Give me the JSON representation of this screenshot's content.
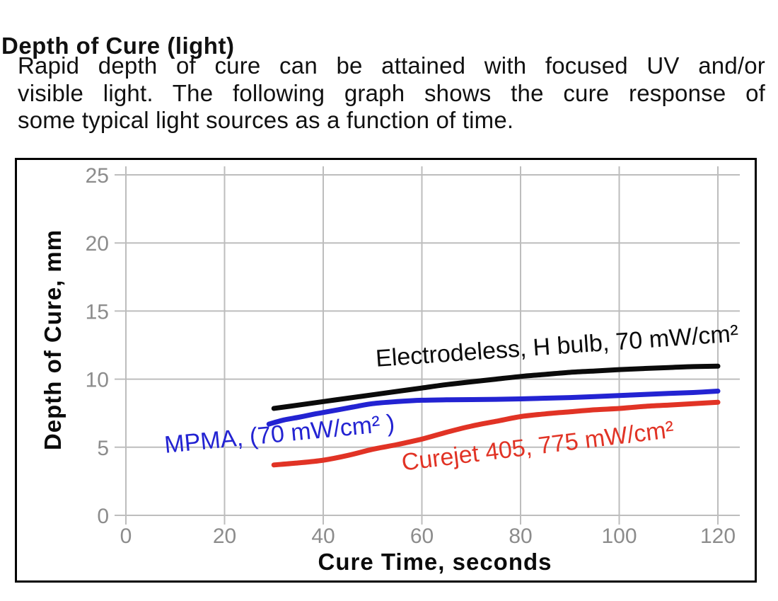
{
  "header": {
    "title": "Depth of Cure (light)",
    "paragraph_lines": [
      "Rapid depth of cure can be attained with focused UV and/or",
      "visible light. The following graph shows the cure response of",
      "some typical light sources as a function of time."
    ]
  },
  "colors": {
    "frame": "#000000",
    "grid": "#bdbdbd",
    "tick_labels": "#8c8c8c",
    "axis_titles": "#0b0b0b"
  },
  "chart_data": {
    "type": "line",
    "xlabel": "Cure Time, seconds",
    "ylabel": "Depth of Cure, mm",
    "xlim": [
      0,
      120
    ],
    "ylim": [
      0,
      25
    ],
    "x_ticks": [
      0,
      20,
      40,
      60,
      80,
      100,
      120
    ],
    "y_ticks": [
      0,
      5,
      10,
      15,
      20,
      25
    ],
    "grid": true,
    "legend_position": "inline-curve-labels",
    "series": [
      {
        "name": "Electrodeless H bulb",
        "label": "Electrodeless, H bulb, 70 mW/cm²",
        "color": "#0b0b0b",
        "points": [
          [
            30,
            7.85
          ],
          [
            35,
            8.1
          ],
          [
            40,
            8.35
          ],
          [
            45,
            8.6
          ],
          [
            50,
            8.85
          ],
          [
            55,
            9.1
          ],
          [
            60,
            9.35
          ],
          [
            65,
            9.6
          ],
          [
            70,
            9.8
          ],
          [
            75,
            10.0
          ],
          [
            80,
            10.2
          ],
          [
            85,
            10.35
          ],
          [
            90,
            10.5
          ],
          [
            95,
            10.6
          ],
          [
            100,
            10.7
          ],
          [
            105,
            10.78
          ],
          [
            110,
            10.85
          ],
          [
            115,
            10.92
          ],
          [
            120,
            10.95
          ]
        ]
      },
      {
        "name": "MPMA",
        "label": "MPMA, (70 mW/cm² )",
        "color": "#2323d2",
        "points": [
          [
            29,
            6.7
          ],
          [
            32,
            7.0
          ],
          [
            35,
            7.2
          ],
          [
            38,
            7.42
          ],
          [
            40,
            7.55
          ],
          [
            43,
            7.75
          ],
          [
            46,
            7.95
          ],
          [
            50,
            8.2
          ],
          [
            55,
            8.35
          ],
          [
            60,
            8.45
          ],
          [
            65,
            8.48
          ],
          [
            70,
            8.5
          ],
          [
            75,
            8.52
          ],
          [
            80,
            8.55
          ],
          [
            85,
            8.6
          ],
          [
            90,
            8.65
          ],
          [
            95,
            8.72
          ],
          [
            100,
            8.8
          ],
          [
            105,
            8.87
          ],
          [
            110,
            8.95
          ],
          [
            115,
            9.02
          ],
          [
            120,
            9.12
          ]
        ]
      },
      {
        "name": "Curejet 405",
        "label": "Curejet 405, 775 mW/cm²",
        "color": "#e13325",
        "points": [
          [
            30,
            3.7
          ],
          [
            35,
            3.85
          ],
          [
            40,
            4.05
          ],
          [
            45,
            4.4
          ],
          [
            50,
            4.85
          ],
          [
            55,
            5.2
          ],
          [
            60,
            5.6
          ],
          [
            65,
            6.1
          ],
          [
            70,
            6.55
          ],
          [
            75,
            6.9
          ],
          [
            80,
            7.25
          ],
          [
            85,
            7.45
          ],
          [
            90,
            7.6
          ],
          [
            95,
            7.75
          ],
          [
            100,
            7.85
          ],
          [
            105,
            8.0
          ],
          [
            110,
            8.1
          ],
          [
            115,
            8.2
          ],
          [
            120,
            8.3
          ]
        ]
      }
    ]
  }
}
